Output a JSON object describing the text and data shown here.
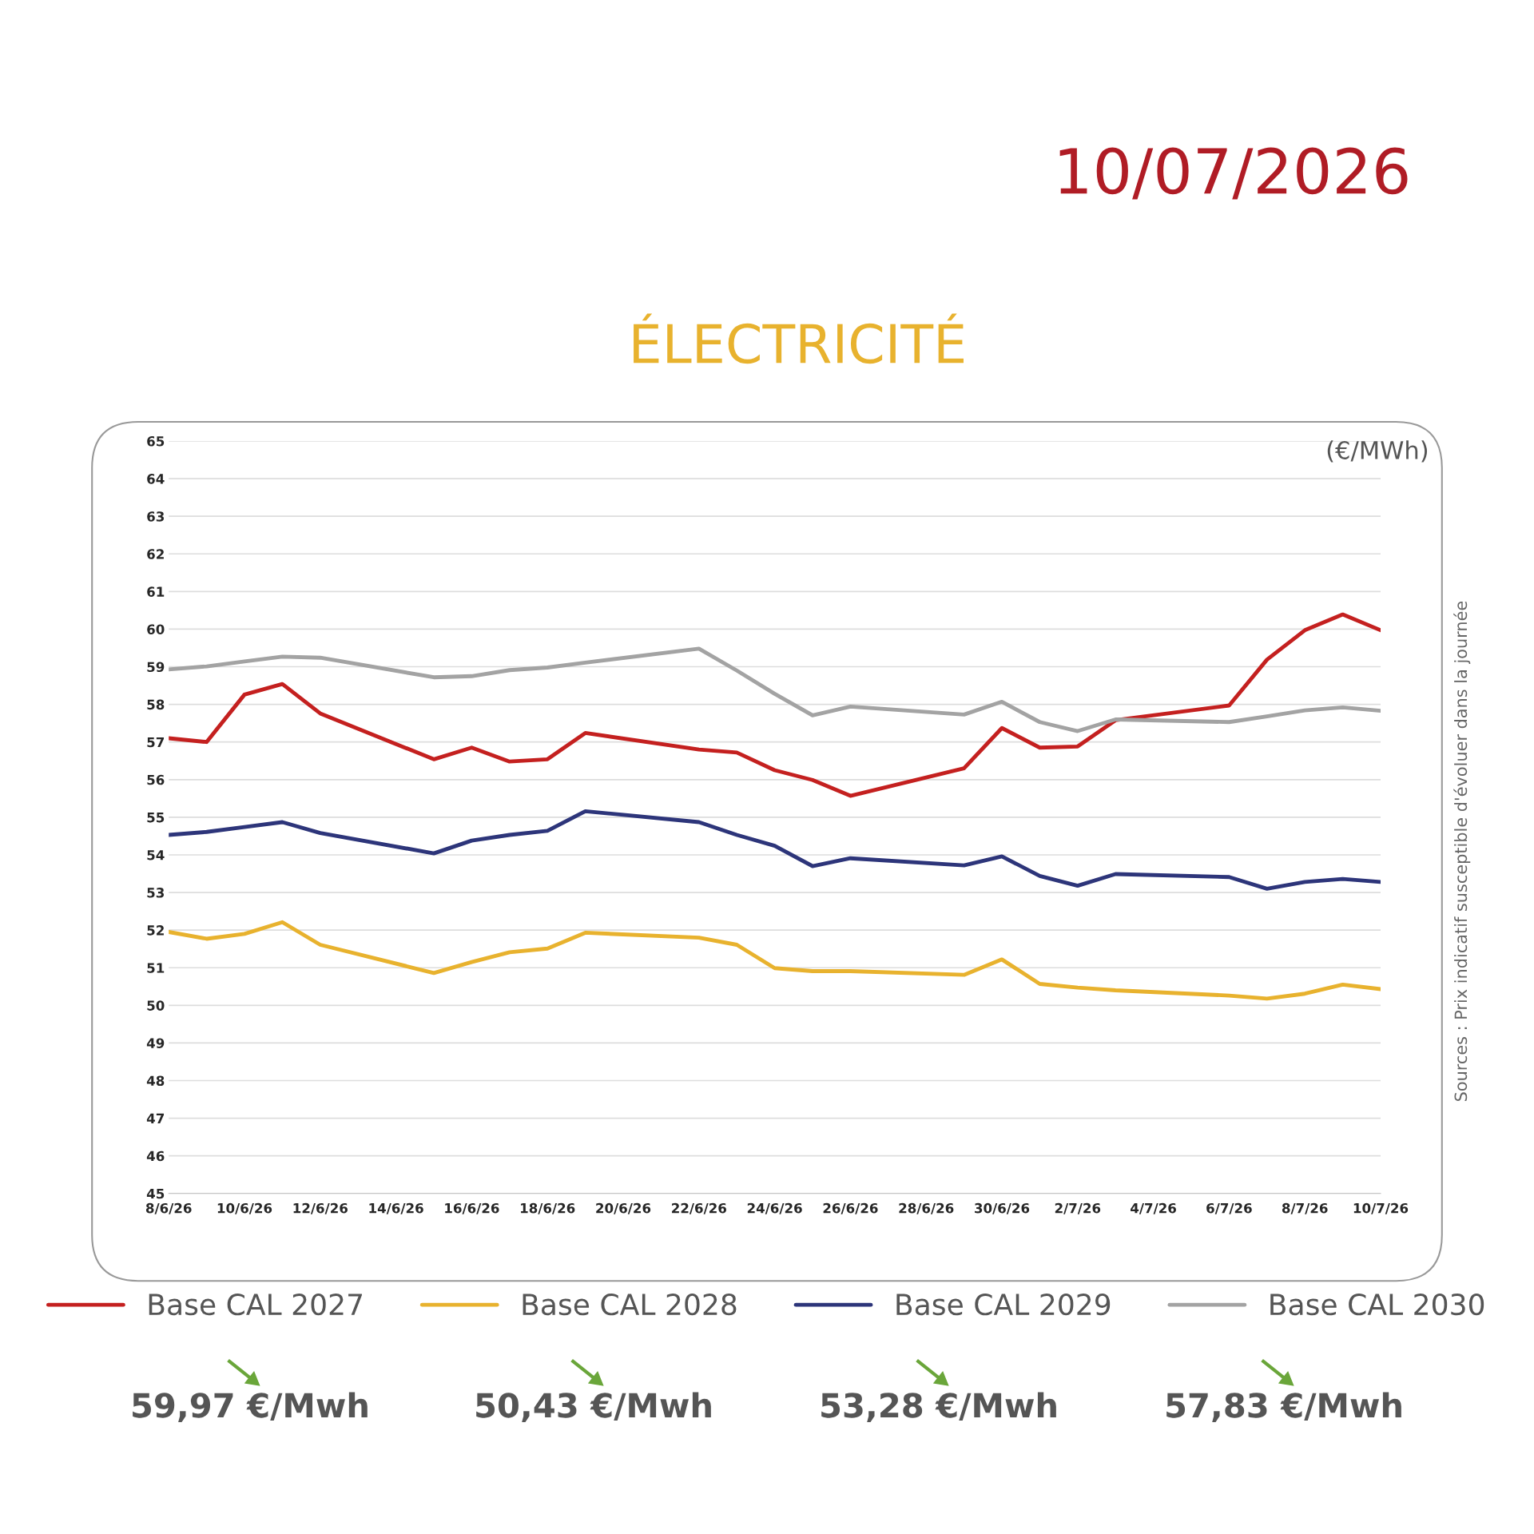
{
  "chart_data": {
    "type": "line",
    "title": "ÉLECTRICITÉ",
    "subtitle": "10/07/2026",
    "ylabel": "(€/MWh)",
    "x": [
      "2026-06-08",
      "2026-06-09",
      "2026-06-10",
      "2026-06-11",
      "2026-06-12",
      "2026-06-15",
      "2026-06-16",
      "2026-06-17",
      "2026-06-18",
      "2026-06-19",
      "2026-06-22",
      "2026-06-23",
      "2026-06-24",
      "2026-06-25",
      "2026-06-26",
      "2026-06-29",
      "2026-06-30",
      "2026-07-01",
      "2026-07-02",
      "2026-07-03",
      "2026-07-06",
      "2026-07-07",
      "2026-07-08",
      "2026-07-09",
      "2026-07-10"
    ],
    "series": [
      {
        "name": "Base CAL 2027",
        "color": "#c4201f",
        "values": [
          57.1,
          57.0,
          58.26,
          58.54,
          57.76,
          56.54,
          56.85,
          56.48,
          56.54,
          57.24,
          56.8,
          56.72,
          56.25,
          55.99,
          55.57,
          56.3,
          57.37,
          56.85,
          56.88,
          57.58,
          57.97,
          59.19,
          59.97,
          60.39,
          59.97
        ]
      },
      {
        "name": "Base CAL 2028",
        "color": "#e8b22e",
        "values": [
          51.95,
          51.77,
          51.9,
          52.21,
          51.61,
          50.86,
          51.15,
          51.41,
          51.51,
          51.93,
          51.8,
          51.61,
          50.99,
          50.91,
          50.91,
          50.81,
          51.22,
          50.57,
          50.47,
          50.4,
          50.26,
          50.18,
          50.31,
          50.55,
          50.43
        ]
      },
      {
        "name": "Base CAL 2029",
        "color": "#2d357a",
        "values": [
          54.53,
          54.61,
          54.74,
          54.87,
          54.58,
          54.04,
          54.38,
          54.53,
          54.64,
          55.16,
          54.87,
          54.53,
          54.24,
          53.7,
          53.91,
          53.72,
          53.96,
          53.44,
          53.18,
          53.49,
          53.41,
          53.1,
          53.28,
          53.36,
          53.28
        ]
      },
      {
        "name": "Base CAL 2030",
        "color": "#a3a3a3",
        "values": [
          58.93,
          59.01,
          59.14,
          59.27,
          59.24,
          58.72,
          58.75,
          58.91,
          58.98,
          59.11,
          59.48,
          58.9,
          58.28,
          57.71,
          57.94,
          57.73,
          58.07,
          57.53,
          57.29,
          57.6,
          57.53,
          57.68,
          57.84,
          57.92,
          57.83
        ]
      }
    ],
    "ylim": [
      45,
      65
    ],
    "yticks": [
      45,
      46,
      47,
      48,
      49,
      50,
      51,
      52,
      53,
      54,
      55,
      56,
      57,
      58,
      59,
      60,
      61,
      62,
      63,
      64,
      65
    ],
    "xlim": [
      "2026-06-08",
      "2026-07-10"
    ],
    "xticks": [
      {
        "value": "2026-06-08",
        "label": "8/6/26"
      },
      {
        "value": "2026-06-10",
        "label": "10/6/26"
      },
      {
        "value": "2026-06-12",
        "label": "12/6/26"
      },
      {
        "value": "2026-06-14",
        "label": "14/6/26"
      },
      {
        "value": "2026-06-16",
        "label": "16/6/26"
      },
      {
        "value": "2026-06-18",
        "label": "18/6/26"
      },
      {
        "value": "2026-06-20",
        "label": "20/6/26"
      },
      {
        "value": "2026-06-22",
        "label": "22/6/26"
      },
      {
        "value": "2026-06-24",
        "label": "24/6/26"
      },
      {
        "value": "2026-06-26",
        "label": "26/6/26"
      },
      {
        "value": "2026-06-28",
        "label": "28/6/26"
      },
      {
        "value": "2026-06-30",
        "label": "30/6/26"
      },
      {
        "value": "2026-07-02",
        "label": "2/7/26"
      },
      {
        "value": "2026-07-04",
        "label": "4/7/26"
      },
      {
        "value": "2026-07-06",
        "label": "6/7/26"
      },
      {
        "value": "2026-07-08",
        "label": "8/7/26"
      },
      {
        "value": "2026-07-10",
        "label": "10/7/26"
      }
    ],
    "grid": "y",
    "legend": "bottom",
    "marker": "none",
    "line_style": "solid",
    "annotations": [
      "59,97 €/Mwh",
      "50,43 €/Mwh",
      "53,28 €/Mwh",
      "57,83 €/Mwh",
      "Sources : Prix indicatif susceptible d'évoluer dans la journée"
    ]
  }
}
